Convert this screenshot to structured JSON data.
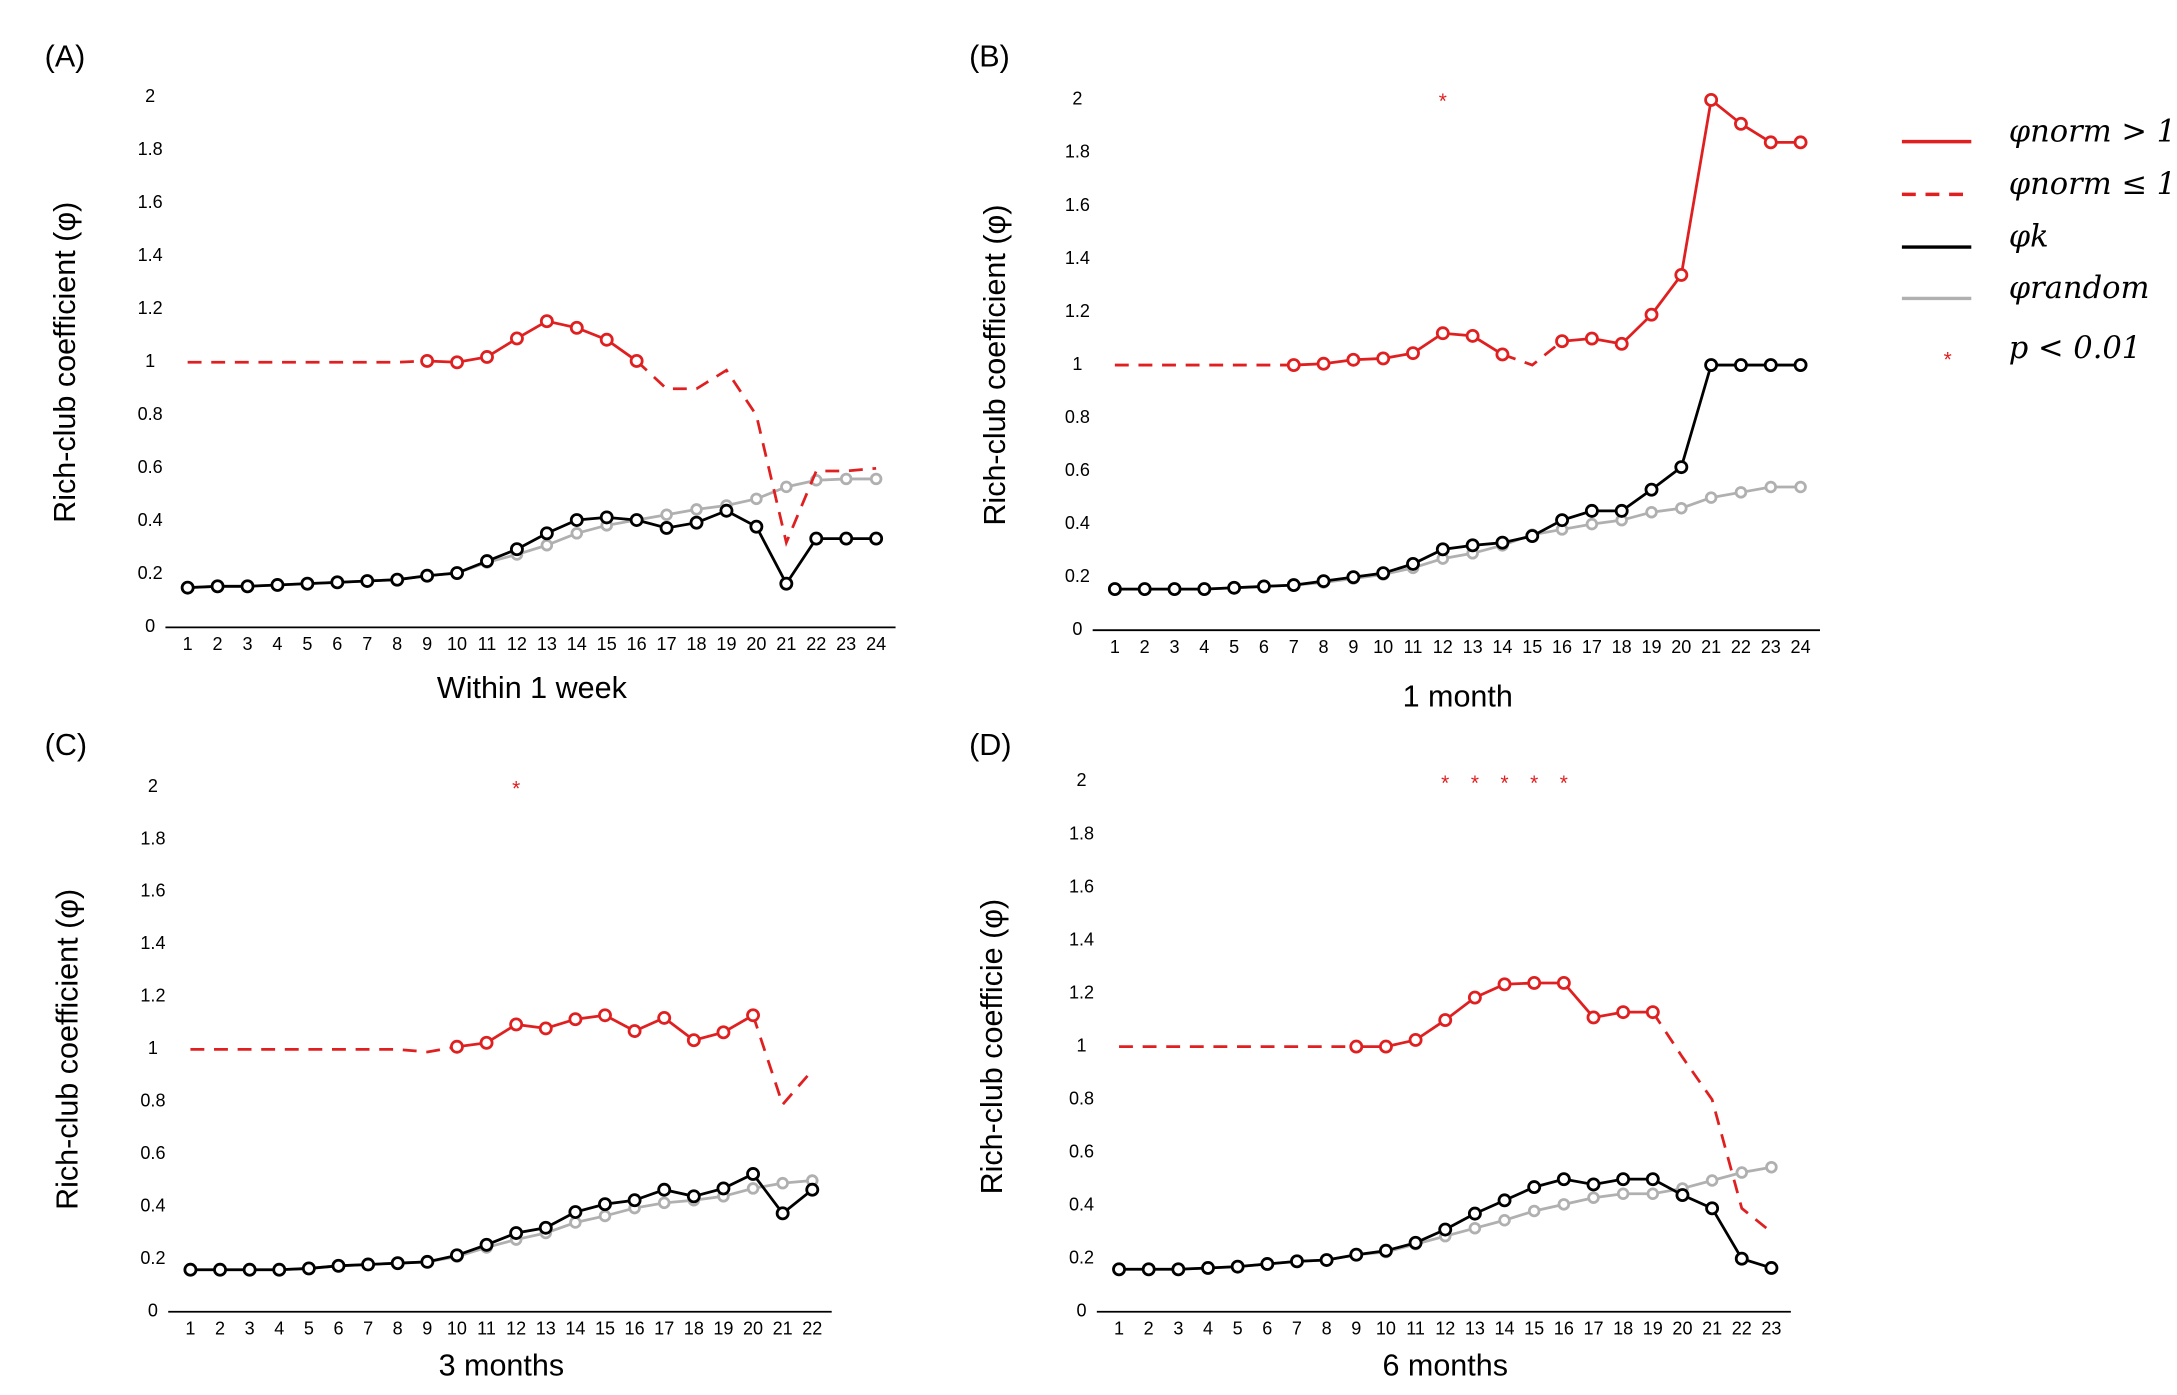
{
  "chart_data": [
    {
      "type": "line",
      "panel": "(A)",
      "y_label": "Rich-club coefficient (φ)",
      "x_label": "Within 1 week",
      "x": [
        1,
        2,
        3,
        4,
        5,
        6,
        7,
        8,
        9,
        10,
        11,
        12,
        13,
        14,
        15,
        16,
        17,
        18,
        19,
        20,
        21,
        22,
        23,
        24
      ],
      "ylim": [
        0,
        2
      ],
      "yticks": [
        0,
        0.2,
        0.4,
        0.6,
        0.8,
        1,
        1.2,
        1.4,
        1.6,
        1.8,
        2
      ],
      "series": [
        {
          "color": "#b0b0b0",
          "dash": false,
          "markers": true,
          "values": [
            0.15,
            0.155,
            0.155,
            0.16,
            0.165,
            0.17,
            0.175,
            0.18,
            0.195,
            0.205,
            0.245,
            0.275,
            0.31,
            0.355,
            0.385,
            0.405,
            0.425,
            0.445,
            0.46,
            0.485,
            0.53,
            0.555,
            0.56,
            0.56
          ]
        },
        {
          "color": "#000000",
          "dash": false,
          "markers": true,
          "values": [
            0.15,
            0.155,
            0.155,
            0.16,
            0.165,
            0.17,
            0.175,
            0.18,
            0.195,
            0.205,
            0.25,
            0.295,
            0.355,
            0.405,
            0.415,
            0.405,
            0.375,
            0.395,
            0.44,
            0.38,
            0.165,
            0.335,
            0.335,
            0.335
          ]
        },
        {
          "color": "#e02020",
          "dash": true,
          "markers": false,
          "values": [
            1,
            1,
            1,
            1,
            1,
            1,
            1,
            1,
            1.005,
            null,
            null,
            null,
            null,
            null,
            null,
            1.005,
            0.9,
            0.9,
            0.97,
            0.8,
            0.32,
            0.59,
            0.59,
            0.6
          ]
        },
        {
          "color": "#e02020",
          "dash": false,
          "markers": true,
          "values": [
            null,
            null,
            null,
            null,
            null,
            null,
            null,
            null,
            1.005,
            1.0,
            1.02,
            1.09,
            1.155,
            1.13,
            1.085,
            1.005,
            null,
            null,
            null,
            null,
            null,
            null,
            null,
            null
          ]
        }
      ],
      "significant_x": []
    },
    {
      "type": "line",
      "panel": "(B)",
      "y_label": "Rich-club coefficient (φ)",
      "x_label": "1 month",
      "x": [
        1,
        2,
        3,
        4,
        5,
        6,
        7,
        8,
        9,
        10,
        11,
        12,
        13,
        14,
        15,
        16,
        17,
        18,
        19,
        20,
        21,
        22,
        23,
        24
      ],
      "ylim": [
        0,
        2
      ],
      "yticks": [
        0,
        0.2,
        0.4,
        0.6,
        0.8,
        1,
        1.2,
        1.4,
        1.6,
        1.8,
        2
      ],
      "series": [
        {
          "color": "#b0b0b0",
          "dash": false,
          "markers": true,
          "values": [
            0.155,
            0.155,
            0.155,
            0.155,
            0.16,
            0.165,
            0.17,
            0.18,
            0.195,
            0.21,
            0.235,
            0.27,
            0.29,
            0.32,
            0.36,
            0.38,
            0.4,
            0.415,
            0.445,
            0.46,
            0.5,
            0.52,
            0.54,
            0.54
          ]
        },
        {
          "color": "#000000",
          "dash": false,
          "markers": true,
          "values": [
            0.155,
            0.155,
            0.155,
            0.155,
            0.16,
            0.165,
            0.17,
            0.185,
            0.2,
            0.215,
            0.25,
            0.305,
            0.32,
            0.33,
            0.355,
            0.415,
            0.45,
            0.45,
            0.53,
            0.615,
            1,
            1,
            1,
            1
          ]
        },
        {
          "color": "#e02020",
          "dash": true,
          "markers": false,
          "values": [
            1,
            1,
            1,
            1,
            1,
            1,
            1,
            null,
            null,
            null,
            null,
            null,
            null,
            1.04,
            1.0,
            1.09,
            null,
            null,
            null,
            null,
            null,
            null,
            null,
            null
          ]
        },
        {
          "color": "#e02020",
          "dash": false,
          "markers": true,
          "values": [
            null,
            null,
            null,
            null,
            null,
            null,
            1.0,
            1.005,
            1.02,
            1.025,
            1.045,
            1.12,
            1.11,
            1.04,
            null,
            1.09,
            1.1,
            1.08,
            1.19,
            1.34,
            2.0,
            1.91,
            1.84,
            1.84
          ]
        }
      ],
      "significant_x": [
        12
      ]
    },
    {
      "type": "line",
      "panel": "(C)",
      "y_label": "Rich-club coefficient (φ)",
      "x_label": "3 months",
      "x": [
        1,
        2,
        3,
        4,
        5,
        6,
        7,
        8,
        9,
        10,
        11,
        12,
        13,
        14,
        15,
        16,
        17,
        18,
        19,
        20,
        21,
        22
      ],
      "ylim": [
        0,
        2
      ],
      "yticks": [
        0,
        0.2,
        0.4,
        0.6,
        0.8,
        1,
        1.2,
        1.4,
        1.6,
        1.8,
        2
      ],
      "series": [
        {
          "color": "#b0b0b0",
          "dash": false,
          "markers": true,
          "values": [
            0.16,
            0.16,
            0.16,
            0.16,
            0.165,
            0.175,
            0.18,
            0.185,
            0.19,
            0.21,
            0.245,
            0.275,
            0.3,
            0.34,
            0.365,
            0.395,
            0.415,
            0.425,
            0.44,
            0.47,
            0.49,
            0.5
          ]
        },
        {
          "color": "#000000",
          "dash": false,
          "markers": true,
          "values": [
            0.16,
            0.16,
            0.16,
            0.16,
            0.165,
            0.175,
            0.18,
            0.185,
            0.19,
            0.215,
            0.255,
            0.3,
            0.32,
            0.38,
            0.41,
            0.425,
            0.465,
            0.44,
            0.47,
            0.525,
            0.375,
            0.465
          ]
        },
        {
          "color": "#e02020",
          "dash": true,
          "markers": false,
          "values": [
            1,
            1,
            1,
            1,
            1,
            1,
            1,
            1,
            0.99,
            1.01,
            null,
            null,
            null,
            null,
            null,
            null,
            null,
            null,
            null,
            1.13,
            0.79,
            0.92
          ]
        },
        {
          "color": "#e02020",
          "dash": false,
          "markers": true,
          "values": [
            null,
            null,
            null,
            null,
            null,
            null,
            null,
            null,
            null,
            1.01,
            1.025,
            1.095,
            1.08,
            1.115,
            1.13,
            1.07,
            1.12,
            1.035,
            1.065,
            1.13,
            null,
            null
          ]
        }
      ],
      "significant_x": [
        12
      ]
    },
    {
      "type": "line",
      "panel": "(D)",
      "y_label": "Rich-club coefficie (φ)",
      "x_label": "6 months",
      "x": [
        1,
        2,
        3,
        4,
        5,
        6,
        7,
        8,
        9,
        10,
        11,
        12,
        13,
        14,
        15,
        16,
        17,
        18,
        19,
        20,
        21,
        22,
        23
      ],
      "ylim": [
        0,
        2
      ],
      "yticks": [
        0,
        0.2,
        0.4,
        0.6,
        0.8,
        1,
        1.2,
        1.4,
        1.6,
        1.8,
        2
      ],
      "series": [
        {
          "color": "#b0b0b0",
          "dash": false,
          "markers": true,
          "values": [
            0.16,
            0.16,
            0.16,
            0.165,
            0.17,
            0.18,
            0.19,
            0.195,
            0.215,
            0.225,
            0.255,
            0.285,
            0.315,
            0.345,
            0.38,
            0.405,
            0.43,
            0.445,
            0.445,
            0.465,
            0.495,
            0.525,
            0.545
          ]
        },
        {
          "color": "#000000",
          "dash": false,
          "markers": true,
          "values": [
            0.16,
            0.16,
            0.16,
            0.165,
            0.17,
            0.18,
            0.19,
            0.195,
            0.215,
            0.23,
            0.26,
            0.31,
            0.37,
            0.42,
            0.47,
            0.5,
            0.48,
            0.5,
            0.5,
            0.44,
            0.39,
            0.2,
            0.165
          ]
        },
        {
          "color": "#e02020",
          "dash": true,
          "markers": false,
          "values": [
            1,
            1,
            1,
            1,
            1,
            1,
            1,
            1,
            1,
            null,
            null,
            null,
            null,
            null,
            null,
            null,
            null,
            null,
            1.13,
            0.96,
            0.8,
            0.39,
            0.3
          ]
        },
        {
          "color": "#e02020",
          "dash": false,
          "markers": true,
          "values": [
            null,
            null,
            null,
            null,
            null,
            null,
            null,
            null,
            1.0,
            1.0,
            1.025,
            1.1,
            1.185,
            1.235,
            1.24,
            1.24,
            1.11,
            1.13,
            1.13,
            null,
            null,
            null,
            null
          ]
        }
      ],
      "significant_x": [
        12,
        13,
        14,
        15,
        16
      ]
    }
  ],
  "significance_marker": "*",
  "legend": [
    {
      "name": "φnorm > 1",
      "color": "#e02020",
      "dash": false
    },
    {
      "name": "φnorm ≤ 1",
      "color": "#e02020",
      "dash": true
    },
    {
      "name": "φk",
      "color": "#000000",
      "dash": false
    },
    {
      "name": "φrandom",
      "color": "#b0b0b0",
      "dash": false
    },
    {
      "name": "p < 0.01",
      "color": "#e02020",
      "marker": "*"
    }
  ]
}
